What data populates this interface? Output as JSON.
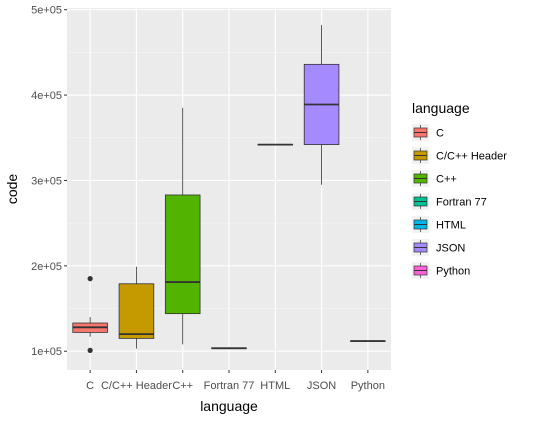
{
  "chart_data": {
    "type": "box",
    "title": "",
    "xlabel": "language",
    "ylabel": "code",
    "categories": [
      "C",
      "C/C++ Header",
      "C++",
      "Fortran 77",
      "HTML",
      "JSON",
      "Python"
    ],
    "ylim": [
      78000,
      502000
    ],
    "yticks": [
      100000,
      200000,
      300000,
      400000,
      500000
    ],
    "ytick_labels": [
      "1e+05",
      "2e+05",
      "3e+05",
      "4e+05",
      "5e+05"
    ],
    "grid": true,
    "legend": {
      "title": "language",
      "position": "right",
      "entries": [
        "C",
        "C/C++ Header",
        "C++",
        "Fortran 77",
        "HTML",
        "JSON",
        "Python"
      ]
    },
    "colors": [
      "#F8766D",
      "#C49A00",
      "#53B400",
      "#00C094",
      "#00B6EB",
      "#A58AFF",
      "#FB61D7"
    ],
    "series": [
      {
        "name": "C",
        "whisker_low": 117000,
        "q1": 122000,
        "median": 128000,
        "q3": 133000,
        "whisker_high": 140000,
        "outliers": [
          185000,
          101000
        ]
      },
      {
        "name": "C/C++ Header",
        "whisker_low": 103000,
        "q1": 115000,
        "median": 120000,
        "q3": 179000,
        "whisker_high": 199000,
        "outliers": []
      },
      {
        "name": "C++",
        "whisker_low": 108000,
        "q1": 144000,
        "median": 181000,
        "q3": 283000,
        "whisker_high": 385000,
        "outliers": []
      },
      {
        "name": "Fortran 77",
        "whisker_low": 102500,
        "q1": 103000,
        "median": 103500,
        "q3": 104000,
        "whisker_high": 104500,
        "outliers": []
      },
      {
        "name": "HTML",
        "whisker_low": 342000,
        "q1": 342000,
        "median": 342000,
        "q3": 342000,
        "whisker_high": 342000,
        "outliers": []
      },
      {
        "name": "JSON",
        "whisker_low": 295000,
        "q1": 342000,
        "median": 389000,
        "q3": 436000,
        "whisker_high": 482000,
        "outliers": []
      },
      {
        "name": "Python",
        "whisker_low": 111500,
        "q1": 112000,
        "median": 112000,
        "q3": 112000,
        "whisker_high": 112500,
        "outliers": []
      }
    ]
  }
}
